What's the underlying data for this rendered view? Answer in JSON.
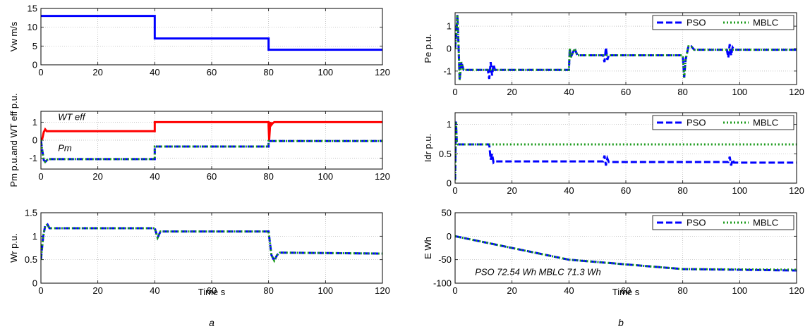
{
  "panel_labels": {
    "a": "a",
    "b": "b"
  },
  "x_label_left": "Time s",
  "x_label_right": "Time s",
  "chart_data": [
    {
      "id": "vw",
      "type": "line",
      "ylabel": "Vw m/s",
      "xlim": [
        0,
        120
      ],
      "ylim": [
        0,
        15
      ],
      "grid": true,
      "xticks": [
        0,
        20,
        40,
        60,
        80,
        100,
        120
      ],
      "yticks": [
        0,
        5,
        10,
        15
      ],
      "legend": null,
      "annotations": [],
      "series": [
        {
          "color": "#0000ff",
          "dash": "solid",
          "points": [
            [
              0,
              13
            ],
            [
              40,
              13
            ],
            [
              40,
              7
            ],
            [
              80,
              7
            ],
            [
              80,
              4
            ],
            [
              120,
              4
            ]
          ]
        }
      ]
    },
    {
      "id": "pm",
      "type": "line",
      "ylabel": "Pm p.u.and WT eff p.u.",
      "xlim": [
        0,
        120
      ],
      "ylim": [
        -1.6,
        1.6
      ],
      "grid": true,
      "xticks": [
        0,
        20,
        40,
        60,
        80,
        100,
        120
      ],
      "yticks": [
        -1,
        0,
        1
      ],
      "legend": null,
      "annotations": [
        {
          "text": "WT eff",
          "x": 6,
          "y": 1.12
        },
        {
          "text": "Pm",
          "x": 6,
          "y": -0.6
        }
      ],
      "series": [
        {
          "color": "#ff0000",
          "dash": "solid",
          "points": [
            [
              0,
              0
            ],
            [
              0.5,
              0.1
            ],
            [
              1,
              0.45
            ],
            [
              1.5,
              0.6
            ],
            [
              2,
              0.5
            ],
            [
              40,
              0.5
            ],
            [
              40,
              1
            ],
            [
              80,
              1
            ],
            [
              80,
              0.8
            ],
            [
              80.2,
              0
            ],
            [
              80.6,
              1
            ],
            [
              81,
              0.85
            ],
            [
              81.5,
              0.95
            ],
            [
              82,
              1
            ],
            [
              120,
              1
            ]
          ]
        },
        {
          "color": "#0000ff",
          "dash": "dash",
          "points": [
            [
              0,
              0
            ],
            [
              0.5,
              -0.6
            ],
            [
              1,
              -1.1
            ],
            [
              1.5,
              -1.2
            ],
            [
              2.5,
              -1.05
            ],
            [
              40,
              -1.05
            ],
            [
              40,
              -0.35
            ],
            [
              80,
              -0.35
            ],
            [
              80,
              -0.05
            ],
            [
              120,
              -0.05
            ]
          ]
        },
        {
          "color": "#1a9a1a",
          "dash": "dot",
          "points": [
            [
              0,
              0
            ],
            [
              0.5,
              -0.6
            ],
            [
              1,
              -1.1
            ],
            [
              1.5,
              -1.2
            ],
            [
              2.5,
              -1.05
            ],
            [
              40,
              -1.05
            ],
            [
              40,
              -0.35
            ],
            [
              80,
              -0.35
            ],
            [
              80,
              -0.05
            ],
            [
              120,
              -0.05
            ]
          ]
        }
      ]
    },
    {
      "id": "wr",
      "type": "line",
      "ylabel": "Wr p.u.",
      "xlim": [
        0,
        120
      ],
      "ylim": [
        0,
        1.5
      ],
      "grid": true,
      "xticks": [
        0,
        20,
        40,
        60,
        80,
        100,
        120
      ],
      "yticks": [
        0,
        0.5,
        1,
        1.5
      ],
      "legend": null,
      "annotations": [],
      "series": [
        {
          "color": "#0000ff",
          "dash": "dash",
          "points": [
            [
              0,
              0.5
            ],
            [
              0.8,
              1.0
            ],
            [
              1.5,
              1.22
            ],
            [
              2.3,
              1.25
            ],
            [
              3,
              1.17
            ],
            [
              40,
              1.17
            ],
            [
              41,
              0.97
            ],
            [
              42,
              1.1
            ],
            [
              80,
              1.1
            ],
            [
              81,
              0.6
            ],
            [
              82,
              0.48
            ],
            [
              83,
              0.6
            ],
            [
              84,
              0.65
            ],
            [
              120,
              0.63
            ]
          ]
        },
        {
          "color": "#1a9a1a",
          "dash": "dot",
          "points": [
            [
              0,
              0.5
            ],
            [
              0.8,
              1.0
            ],
            [
              1.5,
              1.22
            ],
            [
              2.3,
              1.25
            ],
            [
              3,
              1.17
            ],
            [
              40,
              1.17
            ],
            [
              41,
              0.97
            ],
            [
              42,
              1.1
            ],
            [
              80,
              1.1
            ],
            [
              81,
              0.6
            ],
            [
              82,
              0.48
            ],
            [
              83,
              0.6
            ],
            [
              84,
              0.65
            ],
            [
              120,
              0.63
            ]
          ]
        }
      ]
    },
    {
      "id": "pe",
      "type": "line",
      "ylabel": "Pe p.u.",
      "xlim": [
        0,
        120
      ],
      "ylim": [
        -1.6,
        1.6
      ],
      "grid": true,
      "xticks": [
        0,
        20,
        40,
        60,
        80,
        100,
        120
      ],
      "yticks": [
        -1,
        0,
        1
      ],
      "legend": {
        "entries": [
          "PSO",
          "MBLC"
        ],
        "position": "top-right"
      },
      "annotations": [],
      "series": [
        {
          "color": "#0000ff",
          "dash": "dash",
          "points": [
            [
              0,
              0
            ],
            [
              0.5,
              0.8
            ],
            [
              0.8,
              1.5
            ],
            [
              1.2,
              0.2
            ],
            [
              1.6,
              -1.4
            ],
            [
              2.2,
              -0.6
            ],
            [
              3,
              -0.95
            ],
            [
              11.5,
              -0.95
            ],
            [
              12,
              -1.35
            ],
            [
              12.5,
              -0.6
            ],
            [
              13,
              -1.2
            ],
            [
              13.5,
              -0.7
            ],
            [
              14,
              -0.95
            ],
            [
              40,
              -0.95
            ],
            [
              40.3,
              0
            ],
            [
              40.6,
              -0.4
            ],
            [
              42,
              0
            ],
            [
              43,
              -0.3
            ],
            [
              52,
              -0.3
            ],
            [
              52.5,
              -0.6
            ],
            [
              53,
              0.05
            ],
            [
              53.5,
              -0.5
            ],
            [
              54,
              -0.3
            ],
            [
              80,
              -0.3
            ],
            [
              80.5,
              -1.3
            ],
            [
              81,
              -0.5
            ],
            [
              82,
              0.1
            ],
            [
              83,
              0.1
            ],
            [
              84,
              -0.05
            ],
            [
              95.5,
              -0.05
            ],
            [
              96,
              -0.4
            ],
            [
              96.5,
              0.2
            ],
            [
              97,
              -0.3
            ],
            [
              97.5,
              0.05
            ],
            [
              98,
              -0.05
            ],
            [
              120,
              -0.05
            ]
          ]
        },
        {
          "color": "#1a9a1a",
          "dash": "dot",
          "points": [
            [
              0,
              0
            ],
            [
              0.5,
              0.8
            ],
            [
              0.8,
              1.5
            ],
            [
              1.2,
              0.2
            ],
            [
              1.6,
              -1.4
            ],
            [
              2.2,
              -0.6
            ],
            [
              3,
              -0.95
            ],
            [
              40,
              -0.95
            ],
            [
              40.3,
              0
            ],
            [
              40.6,
              -0.4
            ],
            [
              42,
              0
            ],
            [
              43,
              -0.3
            ],
            [
              80,
              -0.3
            ],
            [
              80.5,
              -1.3
            ],
            [
              81,
              -0.5
            ],
            [
              82,
              0.1
            ],
            [
              83,
              0.1
            ],
            [
              84,
              -0.05
            ],
            [
              120,
              -0.05
            ]
          ]
        }
      ]
    },
    {
      "id": "idr",
      "type": "line",
      "ylabel": "Idr p.u.",
      "xlim": [
        0,
        120
      ],
      "ylim": [
        0,
        1.2
      ],
      "grid": true,
      "xticks": [
        0,
        20,
        40,
        60,
        80,
        100,
        120
      ],
      "yticks": [
        0,
        0.5,
        1
      ],
      "legend": {
        "entries": [
          "PSO",
          "MBLC"
        ],
        "position": "top-right"
      },
      "annotations": [],
      "series": [
        {
          "color": "#0000ff",
          "dash": "dash",
          "points": [
            [
              0,
              0.05
            ],
            [
              0.3,
              1.05
            ],
            [
              0.6,
              0.7
            ],
            [
              1,
              0.66
            ],
            [
              12,
              0.66
            ],
            [
              12.5,
              0.4
            ],
            [
              13,
              0.5
            ],
            [
              13.5,
              0.35
            ],
            [
              14,
              0.37
            ],
            [
              52,
              0.37
            ],
            [
              52.5,
              0.47
            ],
            [
              53,
              0.3
            ],
            [
              53.5,
              0.42
            ],
            [
              54,
              0.36
            ],
            [
              96,
              0.36
            ],
            [
              96.5,
              0.45
            ],
            [
              97,
              0.3
            ],
            [
              97.5,
              0.4
            ],
            [
              98,
              0.35
            ],
            [
              120,
              0.35
            ]
          ]
        },
        {
          "color": "#1a9a1a",
          "dash": "dot",
          "points": [
            [
              0,
              0.05
            ],
            [
              0.3,
              1.05
            ],
            [
              0.6,
              0.7
            ],
            [
              1,
              0.66
            ],
            [
              120,
              0.66
            ]
          ]
        }
      ]
    },
    {
      "id": "e",
      "type": "line",
      "ylabel": "E Wh",
      "xlim": [
        0,
        120
      ],
      "ylim": [
        -100,
        50
      ],
      "grid": true,
      "xticks": [
        0,
        20,
        40,
        60,
        80,
        100,
        120
      ],
      "yticks": [
        -100,
        -50,
        0,
        50
      ],
      "legend": {
        "entries": [
          "PSO",
          "MBLC"
        ],
        "position": "top-right"
      },
      "annotations": [
        {
          "text": "PSO 72.54 Wh MBLC 71.3 Wh",
          "x": 7,
          "y": -83
        }
      ],
      "series": [
        {
          "color": "#0000ff",
          "dash": "dash",
          "points": [
            [
              0,
              0
            ],
            [
              40,
              -50
            ],
            [
              80,
              -70
            ],
            [
              120,
              -73
            ]
          ]
        },
        {
          "color": "#1a9a1a",
          "dash": "dot",
          "points": [
            [
              0,
              0
            ],
            [
              40,
              -50
            ],
            [
              80,
              -70
            ],
            [
              120,
              -71.3
            ]
          ]
        }
      ]
    }
  ]
}
